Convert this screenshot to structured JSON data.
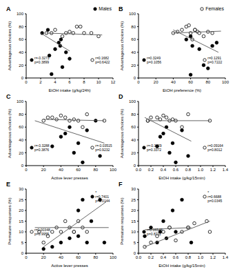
{
  "chart_data": [
    {
      "type": "scatter",
      "title": "A",
      "x_label": "EtOH intake (g/kg/24h)",
      "y_label": "Advantageous choices (%)",
      "xlim": [
        0,
        12
      ],
      "xticks": [
        0,
        2,
        4,
        6,
        8,
        10,
        12
      ],
      "ylim": [
        0,
        100
      ],
      "yticks": [
        0,
        20,
        40,
        60,
        80,
        100
      ],
      "grid": false,
      "legend": "upper right",
      "series": [
        {
          "name": "Males",
          "type": "scatter",
          "marker": "filled",
          "color": "#000000",
          "x": [
            2.2,
            3,
            3.2,
            3.5,
            4,
            4.5,
            4.7,
            4.8,
            5,
            5.5,
            6
          ],
          "values": [
            70,
            75,
            35,
            6,
            45,
            55,
            50,
            60,
            17,
            40,
            30
          ]
        },
        {
          "type": "scatter",
          "marker": "open",
          "color": "#000000",
          "x": [
            2.8,
            3.5,
            4,
            5,
            5.5,
            6,
            6.5,
            7,
            7.5,
            8,
            9,
            10
          ],
          "values": [
            70,
            70,
            75,
            65,
            70,
            72,
            70,
            80,
            80,
            70,
            70,
            65
          ]
        },
        {
          "type": "line",
          "color": "#555555",
          "x": [
            2,
            6
          ],
          "values": [
            70,
            42
          ]
        },
        {
          "type": "line",
          "color": "#555555",
          "x": [
            2.8,
            10.5
          ],
          "values": [
            70,
            67
          ]
        }
      ],
      "annotations": [
        {
          "marker": "filled",
          "lines": [
            "r=-0.3273",
            "p=0.3899"
          ]
        },
        {
          "marker": "open",
          "lines": [
            "r=0.1682",
            "p=0.6422"
          ]
        }
      ]
    },
    {
      "type": "scatter",
      "title": "B",
      "x_label": "EtOH preference (%)",
      "y_label": "Advantageous choices (%)",
      "xlim": [
        0,
        100
      ],
      "xticks": [
        0,
        20,
        40,
        60,
        80,
        100
      ],
      "ylim": [
        0,
        100
      ],
      "yticks": [
        0,
        20,
        40,
        60,
        80,
        100
      ],
      "grid": false,
      "legend": "upper right",
      "series": [
        {
          "type": "scatter",
          "marker": "filled",
          "color": "#000000",
          "x": [
            55,
            60,
            60,
            62,
            65,
            70,
            75,
            80,
            85,
            90
          ],
          "values": [
            60,
            65,
            5,
            50,
            75,
            45,
            20,
            15,
            50,
            55
          ]
        },
        {
          "name": "Females",
          "type": "scatter",
          "marker": "open",
          "color": "#000000",
          "x": [
            40,
            45,
            50,
            55,
            58,
            60,
            62,
            65,
            68,
            70,
            75,
            80,
            85
          ],
          "values": [
            70,
            72,
            75,
            80,
            82,
            70,
            60,
            75,
            72,
            70,
            65,
            72,
            70
          ]
        },
        {
          "type": "line",
          "color": "#555555",
          "x": [
            40,
            92
          ],
          "values": [
            75,
            40
          ]
        },
        {
          "type": "line",
          "color": "#555555",
          "x": [
            40,
            95
          ],
          "values": [
            70,
            73
          ]
        }
      ],
      "annotations": [
        {
          "marker": "filled",
          "lines": [
            "r=0.3249",
            "p=0.1056"
          ]
        },
        {
          "marker": "open",
          "lines": [
            "r=0.1291",
            "p=0.7222"
          ]
        }
      ]
    },
    {
      "type": "scatter",
      "title": "C",
      "x_label": "Active lever presses",
      "y_label": "Advantageous choices (%)",
      "xlim": [
        0,
        100
      ],
      "xticks": [
        0,
        20,
        40,
        60,
        80,
        100
      ],
      "ylim": [
        0,
        100
      ],
      "yticks": [
        0,
        20,
        40,
        60,
        80,
        100
      ],
      "grid": false,
      "series": [
        {
          "type": "scatter",
          "marker": "filled",
          "color": "#000000",
          "x": [
            30,
            40,
            45,
            50,
            55,
            60,
            65,
            70,
            80,
            85
          ],
          "values": [
            30,
            45,
            50,
            60,
            20,
            35,
            5,
            55,
            70,
            15
          ]
        },
        {
          "type": "scatter",
          "marker": "open",
          "color": "#000000",
          "x": [
            20,
            25,
            30,
            35,
            40,
            45,
            50,
            55,
            60,
            65,
            70,
            90
          ],
          "values": [
            70,
            75,
            75,
            72,
            78,
            75,
            70,
            72,
            70,
            60,
            80,
            70
          ]
        },
        {
          "type": "line",
          "color": "#555555",
          "x": [
            10,
            90
          ],
          "values": [
            70,
            35
          ]
        },
        {
          "type": "line",
          "color": "#555555",
          "x": [
            20,
            90
          ],
          "values": [
            72,
            70
          ]
        }
      ],
      "annotations": [
        {
          "marker": "filled",
          "lines": [
            "r=-0.3288",
            "p=0.3876"
          ]
        },
        {
          "marker": "open",
          "lines": [
            "r=-0.03515",
            "p=0.9232"
          ]
        }
      ]
    },
    {
      "type": "scatter",
      "title": "D",
      "x_label": "EtOH intake (g/kg/15min)",
      "y_label": "Advantageous choices (%)",
      "xlim": [
        0,
        1.4
      ],
      "xticks": [
        {
          "value": 0,
          "label": "0.0"
        },
        0.2,
        0.4,
        0.6,
        0.8,
        {
          "value": 1,
          "label": "1.0"
        },
        1.2,
        1.4
      ],
      "ylim": [
        0,
        100
      ],
      "yticks": [
        0,
        20,
        40,
        60,
        80,
        100
      ],
      "grid": false,
      "series": [
        {
          "type": "scatter",
          "marker": "filled",
          "color": "#000000",
          "x": [
            0.15,
            0.3,
            0.35,
            0.4,
            0.45,
            0.5,
            0.55,
            0.6,
            0.7,
            0.8
          ],
          "values": [
            70,
            30,
            45,
            50,
            60,
            20,
            35,
            5,
            55,
            15
          ]
        },
        {
          "type": "scatter",
          "marker": "open",
          "color": "#000000",
          "x": [
            0.15,
            0.2,
            0.3,
            0.35,
            0.4,
            0.45,
            0.5,
            0.55,
            0.6,
            0.7,
            0.8,
            1.15
          ],
          "values": [
            70,
            75,
            75,
            72,
            78,
            75,
            70,
            72,
            70,
            60,
            80,
            70
          ]
        },
        {
          "type": "line",
          "color": "#555555",
          "x": [
            0.1,
            0.85
          ],
          "values": [
            75,
            38
          ]
        },
        {
          "type": "line",
          "color": "#555555",
          "x": [
            0.15,
            1.15
          ],
          "values": [
            70,
            70
          ]
        }
      ],
      "annotations": [
        {
          "marker": "filled",
          "lines": [
            "r=-0.3629",
            "p=0.3372"
          ]
        },
        {
          "marker": "open",
          "lines": [
            "r=0.09164",
            "p=0.8012"
          ]
        }
      ]
    },
    {
      "type": "scatter",
      "title": "E",
      "x_label": "Active lever presses",
      "y_label": "Premature responses (%)",
      "xlim": [
        0,
        100
      ],
      "xticks": [
        0,
        20,
        40,
        60,
        80,
        100
      ],
      "ylim": [
        0,
        30
      ],
      "yticks": [
        0,
        5,
        10,
        15,
        20,
        25,
        30
      ],
      "grid": false,
      "series": [
        {
          "type": "scatter",
          "marker": "filled",
          "color": "#000000",
          "x": [
            20,
            30,
            40,
            50,
            55,
            60,
            60,
            65,
            70,
            75,
            85,
            90
          ],
          "values": [
            2,
            3,
            5,
            7,
            10,
            8,
            20,
            25,
            5,
            15,
            25,
            5
          ]
        },
        {
          "type": "scatter",
          "marker": "open",
          "color": "#000000",
          "x": [
            15,
            20,
            25,
            30,
            35,
            40,
            45,
            50,
            55,
            60,
            65,
            70
          ],
          "values": [
            10,
            5,
            8,
            10,
            12,
            10,
            15,
            12,
            10,
            15,
            12,
            10
          ]
        },
        {
          "type": "line",
          "color": "#555555",
          "x": [
            20,
            92
          ],
          "values": [
            3,
            24
          ]
        },
        {
          "type": "line",
          "color": "#555555",
          "x": [
            10,
            95
          ],
          "values": [
            12,
            12
          ]
        }
      ],
      "annotations": [
        {
          "marker": "filled",
          "lines": [
            "*",
            "r=0.7401",
            "p=0.0144"
          ]
        },
        {
          "marker": "open",
          "lines": [
            "r=0.00348",
            "p=0.9955"
          ]
        }
      ]
    },
    {
      "type": "scatter",
      "title": "F",
      "x_label": "EtOH intake (g/kg/15min)",
      "y_label": "Premature responses (%)",
      "xlim": [
        0,
        1.4
      ],
      "xticks": [
        {
          "value": 0,
          "label": "0.0"
        },
        0.2,
        0.4,
        0.6,
        0.8,
        {
          "value": 1,
          "label": "1.0"
        },
        1.2,
        1.4
      ],
      "ylim": [
        0,
        30
      ],
      "yticks": [
        0,
        5,
        10,
        15,
        20,
        25,
        30
      ],
      "grid": false,
      "series": [
        {
          "type": "scatter",
          "marker": "filled",
          "color": "#000000",
          "x": [
            0.1,
            0.2,
            0.3,
            0.35,
            0.4,
            0.45,
            0.5,
            0.55,
            0.6,
            0.7,
            0.8,
            0.85
          ],
          "values": [
            8,
            12,
            5,
            10,
            15,
            7,
            12,
            20,
            10,
            25,
            12,
            5
          ]
        },
        {
          "type": "scatter",
          "marker": "open",
          "color": "#000000",
          "x": [
            0.1,
            0.2,
            0.3,
            0.4,
            0.5,
            0.6,
            0.7,
            0.8,
            0.9,
            1.1,
            1.15
          ],
          "values": [
            3,
            5,
            8,
            10,
            12,
            6,
            10,
            12,
            14,
            15,
            10
          ]
        },
        {
          "type": "line",
          "color": "#555555",
          "x": [
            0.1,
            0.85
          ],
          "values": [
            11,
            12
          ]
        },
        {
          "type": "line",
          "color": "#555555",
          "x": [
            0.1,
            1.15
          ],
          "values": [
            3,
            15
          ]
        }
      ],
      "annotations": [
        {
          "marker": "filled",
          "lines": [
            "r=0.06548",
            "p=0.8711"
          ]
        },
        {
          "marker": "open",
          "lines": [
            "*",
            "r=0.6688",
            "p=0.0345"
          ]
        }
      ]
    }
  ]
}
